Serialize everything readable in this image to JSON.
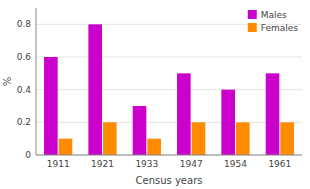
{
  "chart_data": {
    "type": "bar",
    "xlabel": "Census years",
    "ylabel": "%",
    "categories": [
      "1911",
      "1921",
      "1933",
      "1947",
      "1954",
      "1961"
    ],
    "series": [
      {
        "name": "Males",
        "color": "#CC00CC",
        "values": [
          0.6,
          0.8,
          0.3,
          0.5,
          0.4,
          0.5
        ]
      },
      {
        "name": "Females",
        "color": "#FF8C00",
        "values": [
          0.1,
          0.2,
          0.1,
          0.2,
          0.2,
          0.2
        ]
      }
    ],
    "ylim": [
      0,
      0.9
    ],
    "yticks": [
      0,
      0.2,
      0.4,
      0.6,
      0.8
    ],
    "grid": true,
    "legend": "upper right"
  }
}
